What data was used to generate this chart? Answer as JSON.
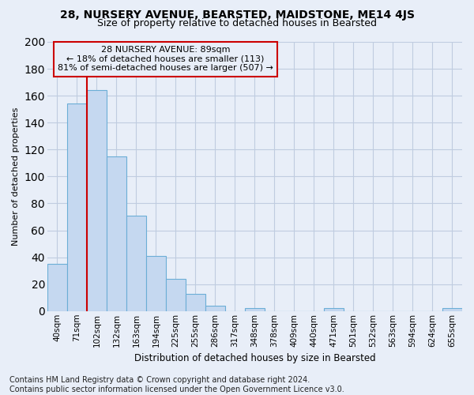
{
  "title1": "28, NURSERY AVENUE, BEARSTED, MAIDSTONE, ME14 4JS",
  "title2": "Size of property relative to detached houses in Bearsted",
  "xlabel": "Distribution of detached houses by size in Bearsted",
  "ylabel": "Number of detached properties",
  "footer1": "Contains HM Land Registry data © Crown copyright and database right 2024.",
  "footer2": "Contains public sector information licensed under the Open Government Licence v3.0.",
  "annotation_line1": "28 NURSERY AVENUE: 89sqm",
  "annotation_line2": "← 18% of detached houses are smaller (113)",
  "annotation_line3": "81% of semi-detached houses are larger (507) →",
  "bar_labels": [
    "40sqm",
    "71sqm",
    "102sqm",
    "132sqm",
    "163sqm",
    "194sqm",
    "225sqm",
    "255sqm",
    "286sqm",
    "317sqm",
    "348sqm",
    "378sqm",
    "409sqm",
    "440sqm",
    "471sqm",
    "501sqm",
    "532sqm",
    "563sqm",
    "594sqm",
    "624sqm",
    "655sqm"
  ],
  "bar_values": [
    35,
    154,
    164,
    115,
    71,
    41,
    24,
    13,
    4,
    0,
    2,
    0,
    0,
    0,
    2,
    0,
    0,
    0,
    0,
    0,
    2
  ],
  "bar_color": "#c5d8f0",
  "bar_edge_color": "#6baed6",
  "vline_color": "#cc0000",
  "vline_x": 1.5,
  "ylim": [
    0,
    200
  ],
  "yticks": [
    0,
    20,
    40,
    60,
    80,
    100,
    120,
    140,
    160,
    180,
    200
  ],
  "background_color": "#e8eef8",
  "grid_color": "#c0cce0",
  "title1_fontsize": 10,
  "title2_fontsize": 9,
  "axis_label_fontsize": 8,
  "tick_fontsize": 7.5,
  "annotation_fontsize": 8,
  "footer_fontsize": 7
}
